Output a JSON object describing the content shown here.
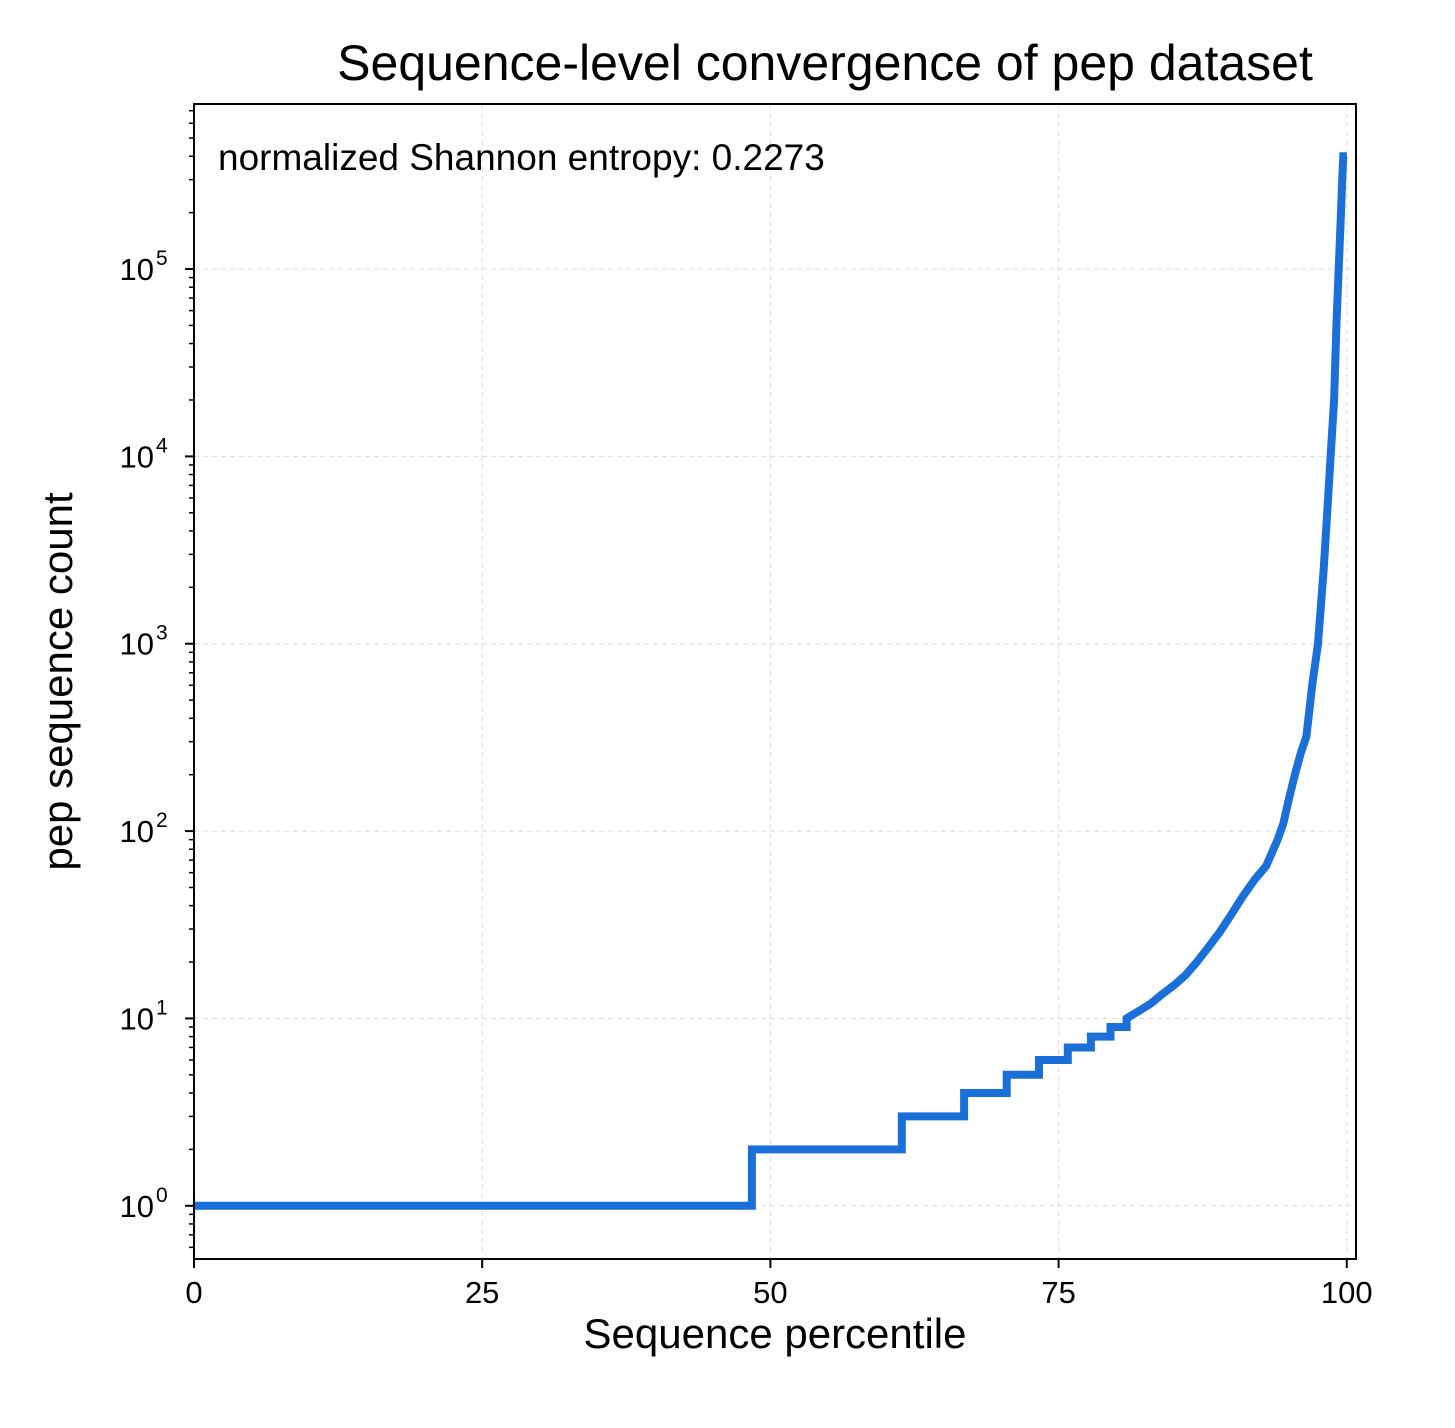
{
  "chart_data": {
    "type": "line",
    "title": "Sequence-level convergence of pep dataset",
    "xlabel": "Sequence percentile",
    "ylabel": "pep sequence count",
    "annotation": "normalized Shannon entropy: 0.2273",
    "xlim": [
      0,
      100.8
    ],
    "ylim": [
      0.52,
      760000
    ],
    "yscale": "log",
    "grid": true,
    "legend": "none",
    "line_color": "#1a6fd9",
    "x_ticks": [
      {
        "value": 0,
        "label": "0"
      },
      {
        "value": 25,
        "label": "25"
      },
      {
        "value": 50,
        "label": "50"
      },
      {
        "value": 75,
        "label": "75"
      },
      {
        "value": 100,
        "label": "100"
      }
    ],
    "y_ticks": [
      {
        "value": 1,
        "base": "10",
        "exp": "0"
      },
      {
        "value": 10,
        "base": "10",
        "exp": "1"
      },
      {
        "value": 100,
        "base": "10",
        "exp": "2"
      },
      {
        "value": 1000,
        "base": "10",
        "exp": "3"
      },
      {
        "value": 10000,
        "base": "10",
        "exp": "4"
      },
      {
        "value": 100000,
        "base": "10",
        "exp": "5"
      }
    ],
    "series": [
      {
        "style": "step",
        "x": [
          0,
          48.4,
          48.4,
          61.4,
          61.4,
          66.8,
          66.8,
          70.5,
          70.5,
          73.3,
          73.3,
          75.8,
          75.8,
          77.8,
          77.8,
          79.5,
          79.5,
          80.9,
          80.9,
          82.0,
          83.0,
          84.0,
          85.0,
          86.0,
          87.0,
          88.0,
          89.0,
          90.0,
          91.0,
          92.0,
          93.0,
          94.0,
          94.5,
          95.0,
          95.5,
          96.0,
          96.5,
          97.0,
          97.5,
          98.0,
          98.3,
          98.6,
          98.9,
          99.1,
          99.3,
          99.5,
          99.6,
          99.7,
          99.8,
          99.9,
          100.0
        ],
        "y": [
          1,
          1,
          2,
          2,
          3,
          3,
          4,
          4,
          5,
          5,
          6,
          6,
          7,
          7,
          8,
          8,
          9,
          9,
          10,
          11,
          12,
          13.5,
          15,
          17,
          20,
          24,
          29,
          36,
          45,
          55,
          65,
          90,
          110,
          150,
          200,
          260,
          320,
          600,
          1000,
          2500,
          5000,
          10000,
          20000,
          50000,
          100000,
          200000,
          300000,
          400000,
          400000,
          400000,
          400000
        ]
      }
    ]
  }
}
